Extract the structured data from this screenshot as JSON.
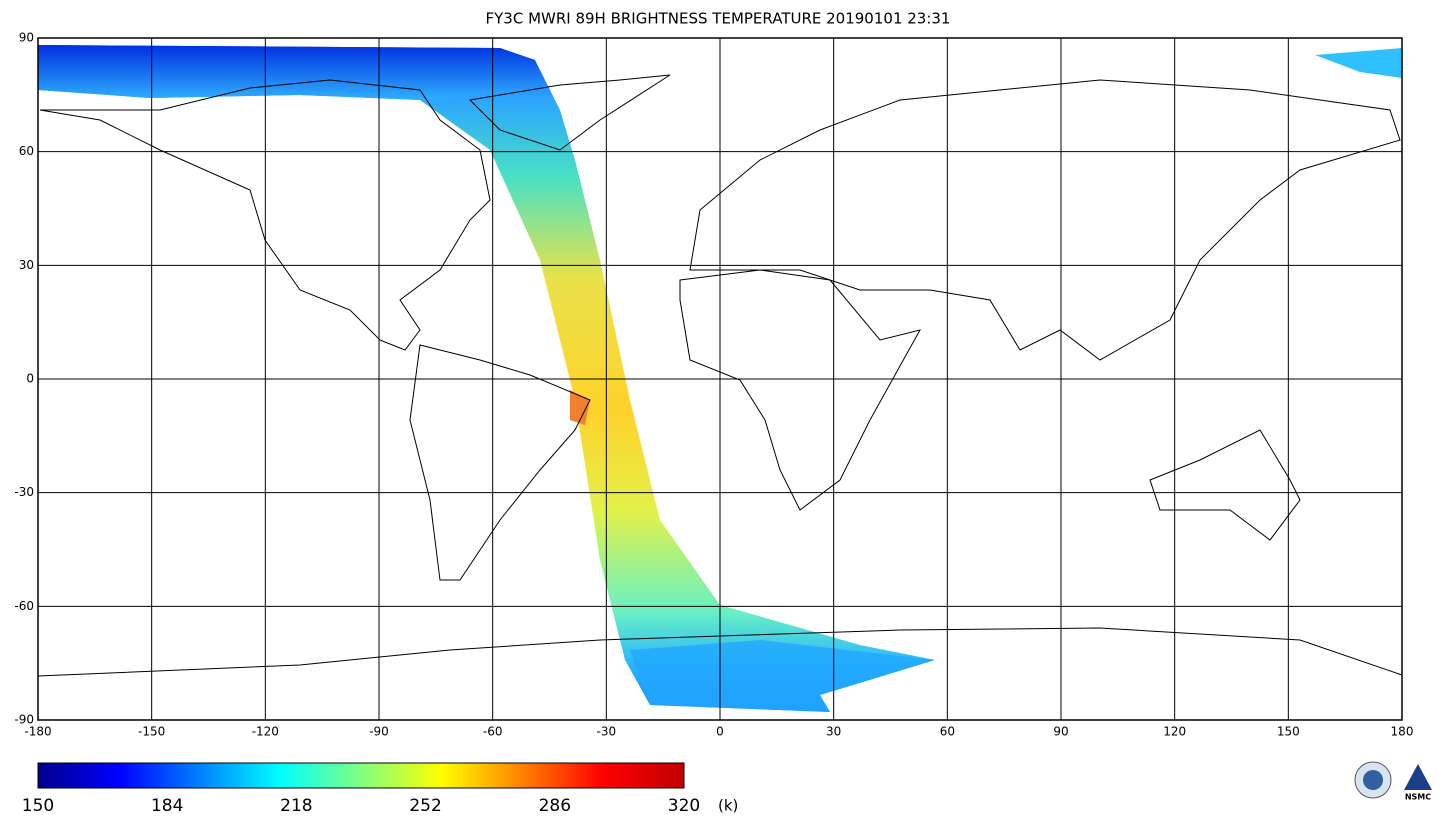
{
  "title": "FY3C MWRI 89H BRIGHTNESS TEMPERATURE  20190101 23:31",
  "map": {
    "xlim": [
      -180,
      180
    ],
    "ylim": [
      -90,
      90
    ],
    "xticks": [
      -180,
      -150,
      -120,
      -90,
      -60,
      -30,
      0,
      30,
      60,
      90,
      120,
      150,
      180
    ],
    "yticks": [
      -90,
      -60,
      -30,
      0,
      30,
      60,
      90
    ],
    "grid": true
  },
  "colorbar": {
    "range": [
      150,
      320
    ],
    "ticks": [
      150,
      184,
      218,
      252,
      286,
      320
    ],
    "unit": "(k)",
    "colors": [
      "#00008c",
      "#0000ff",
      "#0080ff",
      "#00ffff",
      "#80ff80",
      "#ffff00",
      "#ff8000",
      "#ff0000",
      "#c00000"
    ]
  },
  "logo": {
    "text": "NSMC"
  }
}
